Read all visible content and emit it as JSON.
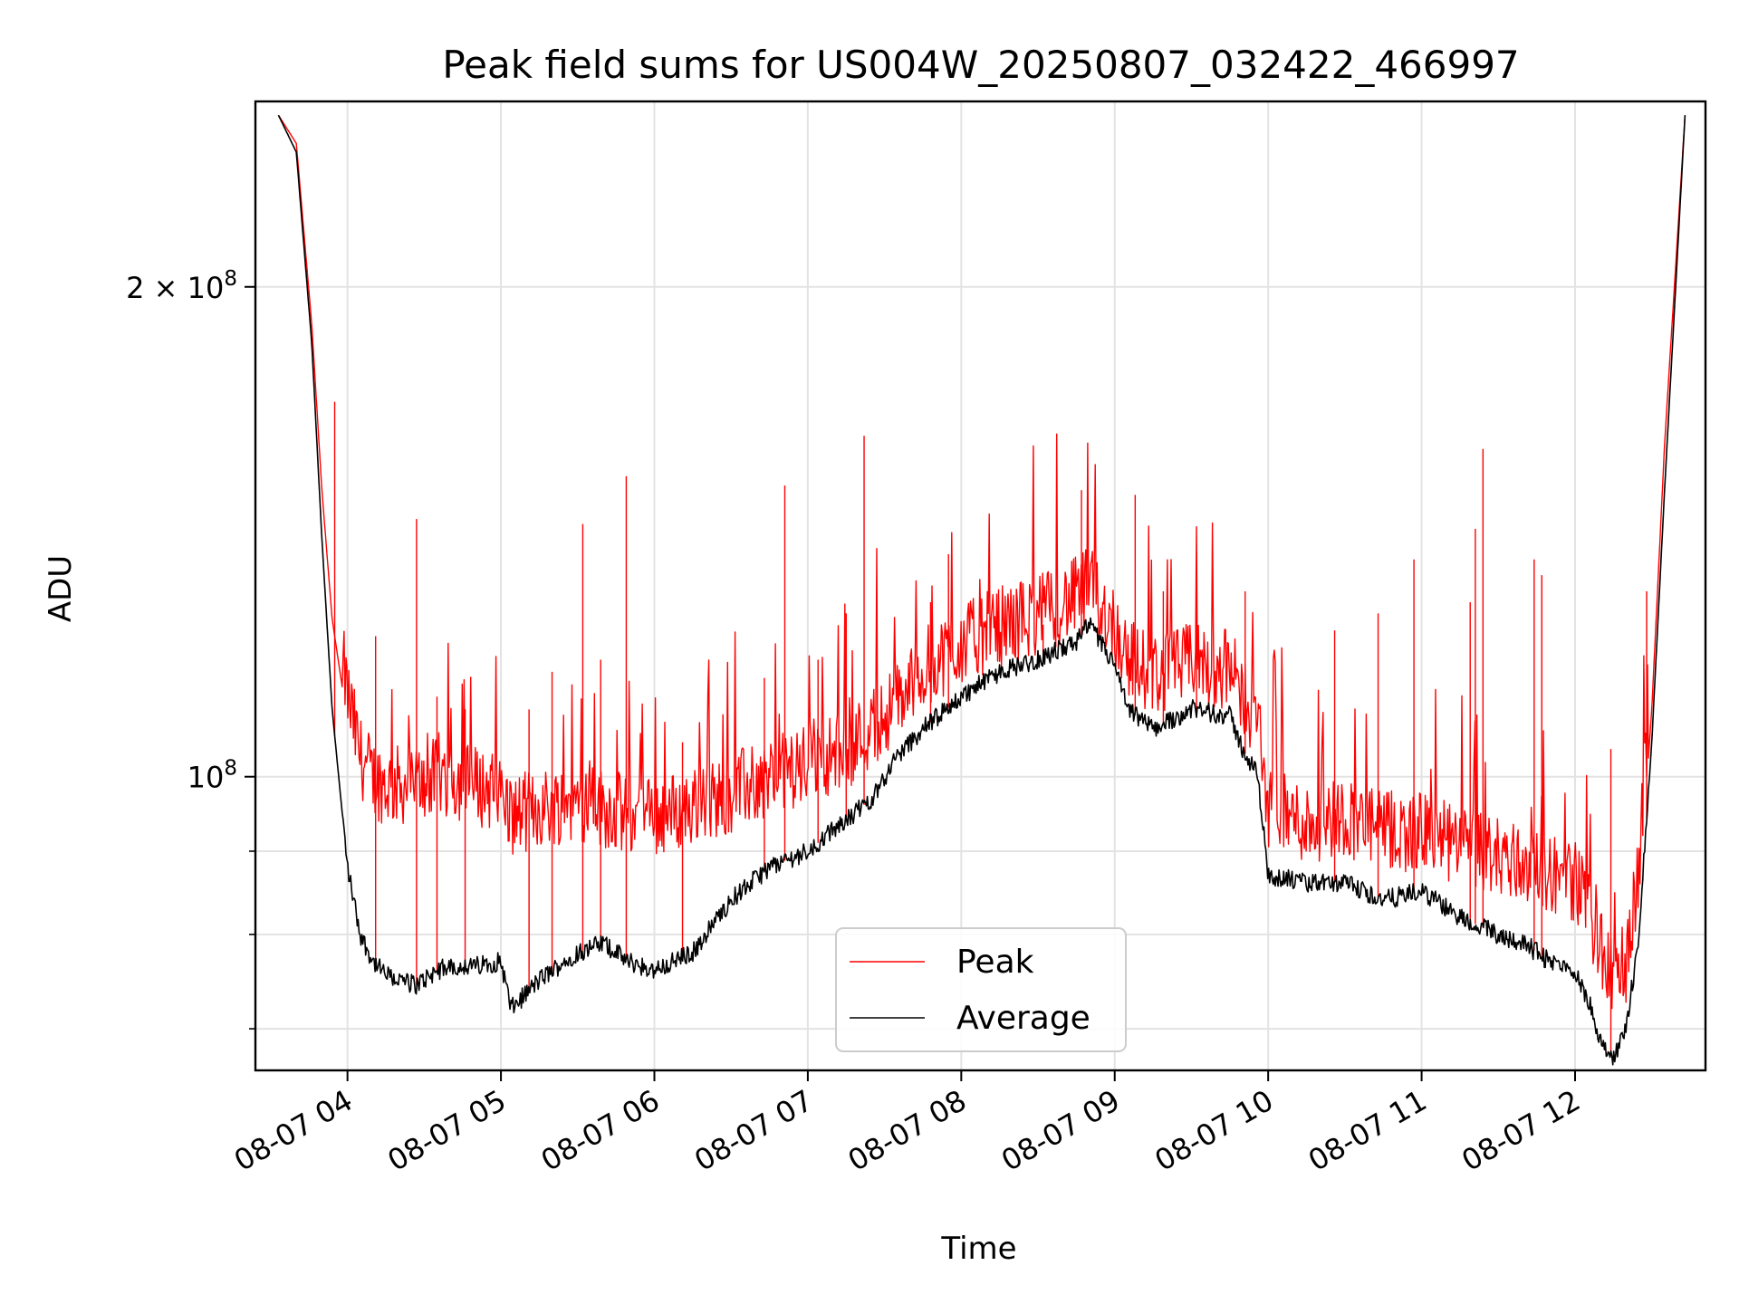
{
  "chart_data": {
    "type": "line",
    "title": "Peak field sums for US004W_20250807_032422_466997",
    "xlabel": "Time",
    "ylabel": "ADU",
    "y_scale": "log",
    "ylim": [
      66000000,
      260000000
    ],
    "xlim": [
      "2025-08-07 03:24",
      "2025-08-07 12:51"
    ],
    "x_ticks": [
      {
        "t": "2025-08-07 04:00",
        "label": "08-07 04"
      },
      {
        "t": "2025-08-07 05:00",
        "label": "08-07 05"
      },
      {
        "t": "2025-08-07 06:00",
        "label": "08-07 06"
      },
      {
        "t": "2025-08-07 07:00",
        "label": "08-07 07"
      },
      {
        "t": "2025-08-07 08:00",
        "label": "08-07 08"
      },
      {
        "t": "2025-08-07 09:00",
        "label": "08-07 09"
      },
      {
        "t": "2025-08-07 10:00",
        "label": "08-07 10"
      },
      {
        "t": "2025-08-07 11:00",
        "label": "08-07 11"
      },
      {
        "t": "2025-08-07 12:00",
        "label": "08-07 12"
      }
    ],
    "y_major_ticks": [
      {
        "value": 100000000,
        "base": "10",
        "exp": "8",
        "coef": ""
      },
      {
        "value": 200000000,
        "base": "10",
        "exp": "8",
        "coef": "2 × "
      }
    ],
    "y_minor_ticks": [
      70000000,
      80000000,
      90000000
    ],
    "grid": true,
    "legend_placement": "lower-center",
    "series": [
      {
        "name": "Peak",
        "color": "#ff0000",
        "x": [
          "2025-08-07 03:33",
          "2025-08-07 03:40",
          "2025-08-07 03:46",
          "2025-08-07 03:50",
          "2025-08-07 03:54",
          "2025-08-07 04:00",
          "2025-08-07 04:05",
          "2025-08-07 04:10",
          "2025-08-07 04:15",
          "2025-08-07 04:20",
          "2025-08-07 04:27",
          "2025-08-07 04:35",
          "2025-08-07 04:40",
          "2025-08-07 04:50",
          "2025-08-07 05:00",
          "2025-08-07 05:04",
          "2025-08-07 05:15",
          "2025-08-07 05:30",
          "2025-08-07 05:40",
          "2025-08-07 05:50",
          "2025-08-07 06:00",
          "2025-08-07 06:15",
          "2025-08-07 06:30",
          "2025-08-07 06:45",
          "2025-08-07 07:00",
          "2025-08-07 07:15",
          "2025-08-07 07:25",
          "2025-08-07 07:35",
          "2025-08-07 07:45",
          "2025-08-07 08:00",
          "2025-08-07 08:15",
          "2025-08-07 08:30",
          "2025-08-07 08:45",
          "2025-08-07 08:50",
          "2025-08-07 09:00",
          "2025-08-07 09:05",
          "2025-08-07 09:15",
          "2025-08-07 09:30",
          "2025-08-07 09:45",
          "2025-08-07 09:50",
          "2025-08-07 09:56",
          "2025-08-07 10:00",
          "2025-08-07 10:15",
          "2025-08-07 10:30",
          "2025-08-07 10:45",
          "2025-08-07 11:00",
          "2025-08-07 11:15",
          "2025-08-07 11:30",
          "2025-08-07 11:40",
          "2025-08-07 11:50",
          "2025-08-07 12:00",
          "2025-08-07 12:05",
          "2025-08-07 12:10",
          "2025-08-07 12:15",
          "2025-08-07 12:20",
          "2025-08-07 12:25",
          "2025-08-07 12:30",
          "2025-08-07 12:35",
          "2025-08-07 12:43"
        ],
        "values": [
          255000000,
          245000000,
          190000000,
          150000000,
          125000000,
          108000000,
          99000000,
          96000000,
          95000000,
          95000000,
          95000000,
          96000000,
          96000000,
          95000000,
          94000000,
          91000000,
          92000000,
          93000000,
          92000000,
          91000000,
          91000000,
          92000000,
          94000000,
          96000000,
          98000000,
          100000000,
          103000000,
          107000000,
          112000000,
          116000000,
          119000000,
          121000000,
          124000000,
          126000000,
          119000000,
          114000000,
          111000000,
          113000000,
          112000000,
          108000000,
          104000000,
          92000000,
          90000000,
          91000000,
          89000000,
          89000000,
          87000000,
          86000000,
          85000000,
          84000000,
          83000000,
          80000000,
          75000000,
          72000000,
          74000000,
          85000000,
          110000000,
          160000000,
          255000000
        ]
      },
      {
        "name": "Average",
        "color": "#000000",
        "x": [
          "2025-08-07 03:33",
          "2025-08-07 03:40",
          "2025-08-07 03:46",
          "2025-08-07 03:50",
          "2025-08-07 03:54",
          "2025-08-07 04:00",
          "2025-08-07 04:05",
          "2025-08-07 04:10",
          "2025-08-07 04:15",
          "2025-08-07 04:20",
          "2025-08-07 04:27",
          "2025-08-07 04:35",
          "2025-08-07 04:40",
          "2025-08-07 04:50",
          "2025-08-07 05:00",
          "2025-08-07 05:04",
          "2025-08-07 05:15",
          "2025-08-07 05:30",
          "2025-08-07 05:40",
          "2025-08-07 05:50",
          "2025-08-07 06:00",
          "2025-08-07 06:15",
          "2025-08-07 06:30",
          "2025-08-07 06:45",
          "2025-08-07 07:00",
          "2025-08-07 07:15",
          "2025-08-07 07:25",
          "2025-08-07 07:35",
          "2025-08-07 07:45",
          "2025-08-07 08:00",
          "2025-08-07 08:15",
          "2025-08-07 08:30",
          "2025-08-07 08:45",
          "2025-08-07 08:50",
          "2025-08-07 09:00",
          "2025-08-07 09:05",
          "2025-08-07 09:15",
          "2025-08-07 09:30",
          "2025-08-07 09:45",
          "2025-08-07 09:50",
          "2025-08-07 09:56",
          "2025-08-07 10:00",
          "2025-08-07 10:15",
          "2025-08-07 10:30",
          "2025-08-07 10:45",
          "2025-08-07 11:00",
          "2025-08-07 11:15",
          "2025-08-07 11:30",
          "2025-08-07 11:40",
          "2025-08-07 11:50",
          "2025-08-07 12:00",
          "2025-08-07 12:05",
          "2025-08-07 12:10",
          "2025-08-07 12:15",
          "2025-08-07 12:20",
          "2025-08-07 12:25",
          "2025-08-07 12:30",
          "2025-08-07 12:35",
          "2025-08-07 12:43"
        ],
        "values": [
          255000000,
          242000000,
          185000000,
          140000000,
          110000000,
          88000000,
          80000000,
          77000000,
          75500000,
          75000000,
          74500000,
          76000000,
          76500000,
          76500000,
          77000000,
          72000000,
          75000000,
          78000000,
          79000000,
          77000000,
          76000000,
          78000000,
          84000000,
          88000000,
          90000000,
          94000000,
          97000000,
          103000000,
          107000000,
          112000000,
          116000000,
          118000000,
          121000000,
          124000000,
          117000000,
          110000000,
          107000000,
          110000000,
          109000000,
          104000000,
          100000000,
          87000000,
          86000000,
          86000000,
          84000000,
          85000000,
          82000000,
          80000000,
          79000000,
          77000000,
          76000000,
          73000000,
          69000000,
          67000000,
          70000000,
          80000000,
          105000000,
          150000000,
          255000000
        ]
      }
    ],
    "spikes": [
      {
        "t": "2025-08-07 03:55",
        "v": 170000000
      },
      {
        "t": "2025-08-07 04:11",
        "v": 122000000
      },
      {
        "t": "2025-08-07 04:27",
        "v": 144000000
      },
      {
        "t": "2025-08-07 04:35",
        "v": 112000000
      },
      {
        "t": "2025-08-07 04:46",
        "v": 110000000
      },
      {
        "t": "2025-08-07 05:11",
        "v": 110000000
      },
      {
        "t": "2025-08-07 05:20",
        "v": 116000000
      },
      {
        "t": "2025-08-07 05:32",
        "v": 143000000
      },
      {
        "t": "2025-08-07 05:39",
        "v": 118000000
      },
      {
        "t": "2025-08-07 05:49",
        "v": 153000000
      },
      {
        "t": "2025-08-07 06:11",
        "v": 105000000
      },
      {
        "t": "2025-08-07 06:43",
        "v": 115000000
      },
      {
        "t": "2025-08-07 06:51",
        "v": 151000000
      },
      {
        "t": "2025-08-07 07:04",
        "v": 118000000
      },
      {
        "t": "2025-08-07 07:15",
        "v": 126000000
      },
      {
        "t": "2025-08-07 07:22",
        "v": 162000000
      },
      {
        "t": "2025-08-07 07:48",
        "v": 128000000
      },
      {
        "t": "2025-08-07 07:55",
        "v": 137000000
      },
      {
        "t": "2025-08-07 08:32",
        "v": 124000000
      },
      {
        "t": "2025-08-07 08:47",
        "v": 150000000
      },
      {
        "t": "2025-08-07 09:08",
        "v": 149000000
      },
      {
        "t": "2025-08-07 09:19",
        "v": 130000000
      },
      {
        "t": "2025-08-07 09:32",
        "v": 129000000
      },
      {
        "t": "2025-08-07 09:51",
        "v": 130000000
      },
      {
        "t": "2025-08-07 10:26",
        "v": 123000000
      },
      {
        "t": "2025-08-07 10:43",
        "v": 126000000
      },
      {
        "t": "2025-08-07 10:57",
        "v": 136000000
      },
      {
        "t": "2025-08-07 11:19",
        "v": 128000000
      },
      {
        "t": "2025-08-07 11:21",
        "v": 142000000
      },
      {
        "t": "2025-08-07 11:24",
        "v": 159000000
      },
      {
        "t": "2025-08-07 11:44",
        "v": 136000000
      },
      {
        "t": "2025-08-07 11:47",
        "v": 133000000
      },
      {
        "t": "2025-08-07 12:14",
        "v": 104000000
      },
      {
        "t": "2025-08-07 12:28",
        "v": 130000000
      }
    ]
  },
  "legend": {
    "peak_label": "Peak",
    "average_label": "Average"
  }
}
